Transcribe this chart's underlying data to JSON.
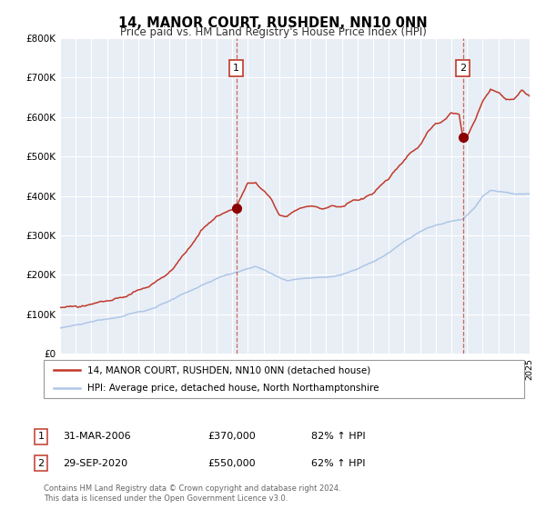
{
  "title": "14, MANOR COURT, RUSHDEN, NN10 0NN",
  "subtitle": "Price paid vs. HM Land Registry's House Price Index (HPI)",
  "legend_line1": "14, MANOR COURT, RUSHDEN, NN10 0NN (detached house)",
  "legend_line2": "HPI: Average price, detached house, North Northamptonshire",
  "sale1_label": "1",
  "sale1_date": "31-MAR-2006",
  "sale1_price": "£370,000",
  "sale1_hpi": "82% ↑ HPI",
  "sale1_year": 2006.25,
  "sale1_value": 370000,
  "sale2_label": "2",
  "sale2_date": "29-SEP-2020",
  "sale2_price": "£550,000",
  "sale2_hpi": "62% ↑ HPI",
  "sale2_year": 2020.75,
  "sale2_value": 550000,
  "footer1": "Contains HM Land Registry data © Crown copyright and database right 2024.",
  "footer2": "This data is licensed under the Open Government Licence v3.0.",
  "hpi_color": "#aec6e8",
  "price_color": "#c0392b",
  "marker_color": "#8b0000",
  "background_color": "#e8eef5",
  "grid_color": "#ffffff",
  "ylim": [
    0,
    800000
  ],
  "xlim_start": 1995,
  "xlim_end": 2025
}
